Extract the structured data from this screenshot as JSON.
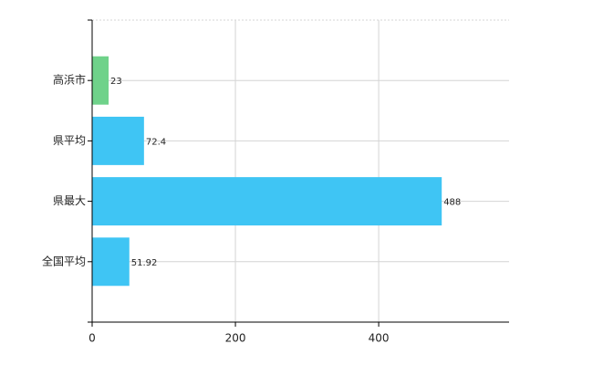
{
  "chart_data": {
    "type": "hbar",
    "categories": [
      "高浜市",
      "県平均",
      "県最大",
      "全国平均"
    ],
    "values": [
      23,
      72.4,
      488,
      51.92
    ],
    "colors": [
      "#6fd28a",
      "#3fc5f4",
      "#3fc5f4",
      "#3fc5f4"
    ],
    "xlim": [
      0,
      582
    ],
    "xticks": [
      0,
      200,
      400
    ],
    "grid": true
  }
}
